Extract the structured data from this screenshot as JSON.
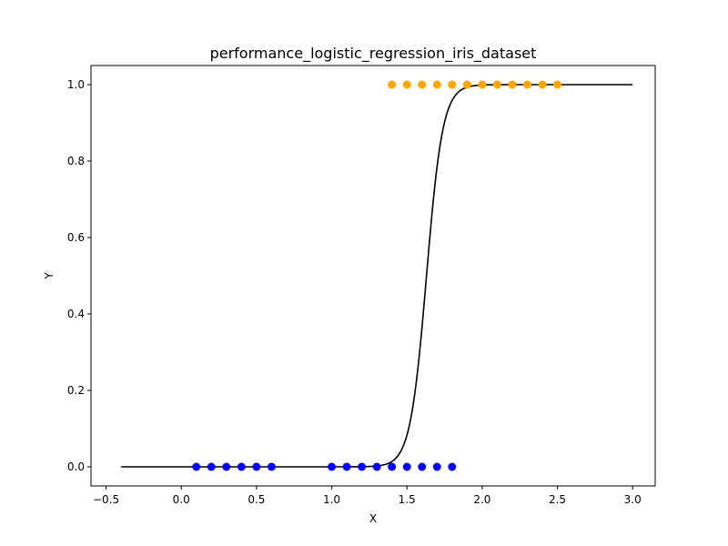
{
  "chart_data": {
    "type": "scatter",
    "title": "performance_logistic_regression_iris_dataset",
    "xlabel": "X",
    "ylabel": "Y",
    "xlim": [
      -0.6,
      3.15
    ],
    "ylim": [
      -0.05,
      1.05
    ],
    "x_ticks": [
      -0.5,
      0.0,
      0.5,
      1.0,
      1.5,
      2.0,
      2.5,
      3.0
    ],
    "x_tick_labels": [
      "−0.5",
      "0.0",
      "0.5",
      "1.0",
      "1.5",
      "2.0",
      "2.5",
      "3.0"
    ],
    "y_ticks": [
      0.0,
      0.2,
      0.4,
      0.6,
      0.8,
      1.0
    ],
    "y_tick_labels": [
      "0.0",
      "0.2",
      "0.4",
      "0.6",
      "0.8",
      "1.0"
    ],
    "grid": false,
    "series": [
      {
        "kind": "scatter",
        "color": "#0000ff",
        "x": [
          0.1,
          0.2,
          0.3,
          0.4,
          0.5,
          0.6,
          1.0,
          1.1,
          1.2,
          1.3,
          1.4,
          1.5,
          1.6,
          1.7,
          1.8
        ],
        "y": [
          0,
          0,
          0,
          0,
          0,
          0,
          0,
          0,
          0,
          0,
          0,
          0,
          0,
          0,
          0
        ]
      },
      {
        "kind": "scatter",
        "color": "#ffa500",
        "x": [
          1.4,
          1.5,
          1.6,
          1.7,
          1.8,
          1.9,
          2.0,
          2.1,
          2.2,
          2.3,
          2.4,
          2.5
        ],
        "y": [
          1,
          1,
          1,
          1,
          1,
          1,
          1,
          1,
          1,
          1,
          1,
          1
        ]
      },
      {
        "kind": "line",
        "color": "#000000",
        "function": "logistic",
        "x_range": [
          -0.4,
          3.0
        ],
        "midpoint": 1.63,
        "steepness": 18.5
      }
    ]
  }
}
